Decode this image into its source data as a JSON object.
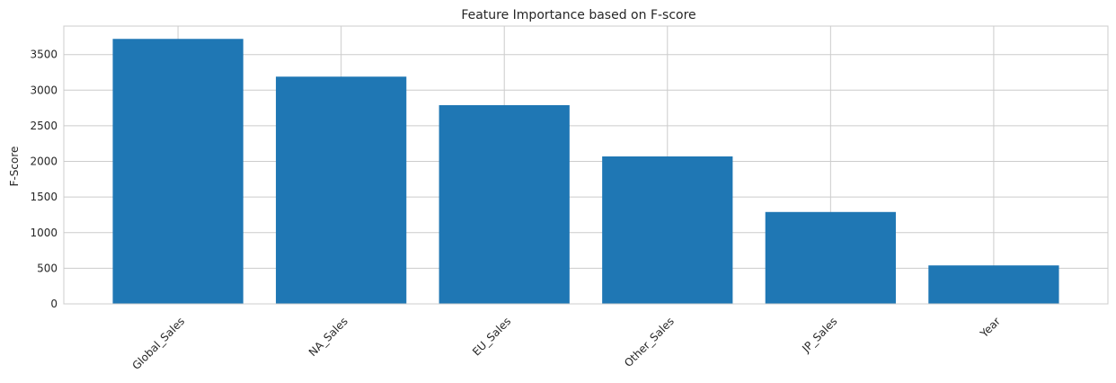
{
  "chart_data": {
    "type": "bar",
    "title": "Feature Importance based on F-score",
    "xlabel": "",
    "ylabel": "F-Score",
    "categories": [
      "Global_Sales",
      "NA_Sales",
      "EU_Sales",
      "Other_Sales",
      "JP_Sales",
      "Year"
    ],
    "values": [
      3720,
      3190,
      2790,
      2070,
      1290,
      540
    ],
    "ylim": [
      0,
      3900
    ],
    "yticks": [
      0,
      500,
      1000,
      1500,
      2000,
      2500,
      3000,
      3500
    ],
    "grid": true,
    "legend": "none",
    "colors": {
      "bar": "#1f77b4",
      "grid": "#cccccc",
      "text": "#262626"
    }
  }
}
